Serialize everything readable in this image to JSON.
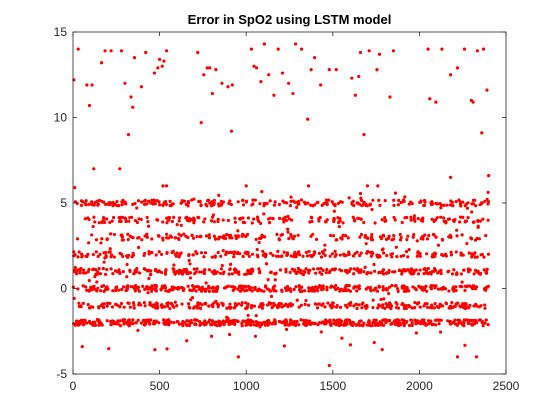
{
  "chart_data": {
    "type": "scatter",
    "title": "Error in SpO2 using LSTM model",
    "xlabel": "",
    "ylabel": "",
    "xlim": [
      0,
      2500
    ],
    "ylim": [
      -5,
      15
    ],
    "x_ticks": [
      0,
      500,
      1000,
      1500,
      2000,
      2500
    ],
    "y_ticks": [
      -5,
      0,
      5,
      10,
      15
    ],
    "grid": false,
    "legend": "none",
    "marker_color": "#ff0000",
    "series": [
      {
        "n_points": 2400,
        "x_range": [
          1,
          2400
        ],
        "note_distribution": "errors cluster at integer levels -2, -1, 0, 1, 2, 3, 4, 5 with sparse outliers between 9 and 14.3 and a minimum near -4.5",
        "points": [
          [
            5,
            12.2
          ],
          [
            30,
            14.0
          ],
          [
            80,
            11.9
          ],
          [
            95,
            10.7
          ],
          [
            110,
            11.9
          ],
          [
            165,
            13.2
          ],
          [
            185,
            13.9
          ],
          [
            220,
            13.9
          ],
          [
            280,
            13.9
          ],
          [
            300,
            12.0
          ],
          [
            320,
            9.0
          ],
          [
            335,
            11.2
          ],
          [
            345,
            10.6
          ],
          [
            355,
            13.5
          ],
          [
            395,
            11.8
          ],
          [
            420,
            13.8
          ],
          [
            470,
            12.6
          ],
          [
            490,
            12.9
          ],
          [
            500,
            13.4
          ],
          [
            515,
            13.0
          ],
          [
            525,
            13.3
          ],
          [
            540,
            13.9
          ],
          [
            720,
            13.8
          ],
          [
            740,
            9.7
          ],
          [
            755,
            12.5
          ],
          [
            775,
            12.9
          ],
          [
            790,
            12.9
          ],
          [
            805,
            11.4
          ],
          [
            825,
            12.8
          ],
          [
            860,
            12.0
          ],
          [
            895,
            11.8
          ],
          [
            915,
            9.2
          ],
          [
            920,
            11.9
          ],
          [
            1030,
            14.0
          ],
          [
            1045,
            13.0
          ],
          [
            1060,
            12.9
          ],
          [
            1085,
            12.1
          ],
          [
            1105,
            14.3
          ],
          [
            1130,
            12.5
          ],
          [
            1160,
            11.3
          ],
          [
            1185,
            14.0
          ],
          [
            1210,
            12.6
          ],
          [
            1245,
            12.0
          ],
          [
            1270,
            11.4
          ],
          [
            1285,
            14.3
          ],
          [
            1320,
            14.0
          ],
          [
            1355,
            9.9
          ],
          [
            1375,
            12.8
          ],
          [
            1395,
            13.5
          ],
          [
            1430,
            11.9
          ],
          [
            1480,
            12.8
          ],
          [
            1520,
            12.8
          ],
          [
            1610,
            12.3
          ],
          [
            1630,
            11.3
          ],
          [
            1650,
            12.4
          ],
          [
            1660,
            13.8
          ],
          [
            1680,
            9.0
          ],
          [
            1710,
            13.9
          ],
          [
            1755,
            12.8
          ],
          [
            1770,
            13.7
          ],
          [
            1830,
            11.2
          ],
          [
            1850,
            13.9
          ],
          [
            2050,
            14.0
          ],
          [
            2060,
            11.1
          ],
          [
            2095,
            10.9
          ],
          [
            2130,
            14.0
          ],
          [
            2180,
            12.5
          ],
          [
            2220,
            12.9
          ],
          [
            2260,
            14.0
          ],
          [
            2300,
            11.0
          ],
          [
            2310,
            10.9
          ],
          [
            2335,
            13.9
          ],
          [
            2360,
            9.1
          ],
          [
            2370,
            14.0
          ],
          [
            2390,
            11.6
          ],
          [
            120,
            7.0
          ],
          [
            270,
            7.0
          ],
          [
            955,
            -4.0
          ],
          [
            1480,
            -4.5
          ],
          [
            2220,
            -4.0
          ],
          [
            2330,
            -4.0
          ],
          [
            10,
            5.9
          ],
          [
            520,
            6.0
          ],
          [
            540,
            6.0
          ],
          [
            1000,
            6.0
          ],
          [
            1360,
            6.0
          ],
          [
            1700,
            6.0
          ],
          [
            1760,
            6.0
          ],
          [
            2180,
            6.5
          ],
          [
            2400,
            6.6
          ]
        ]
      }
    ]
  }
}
